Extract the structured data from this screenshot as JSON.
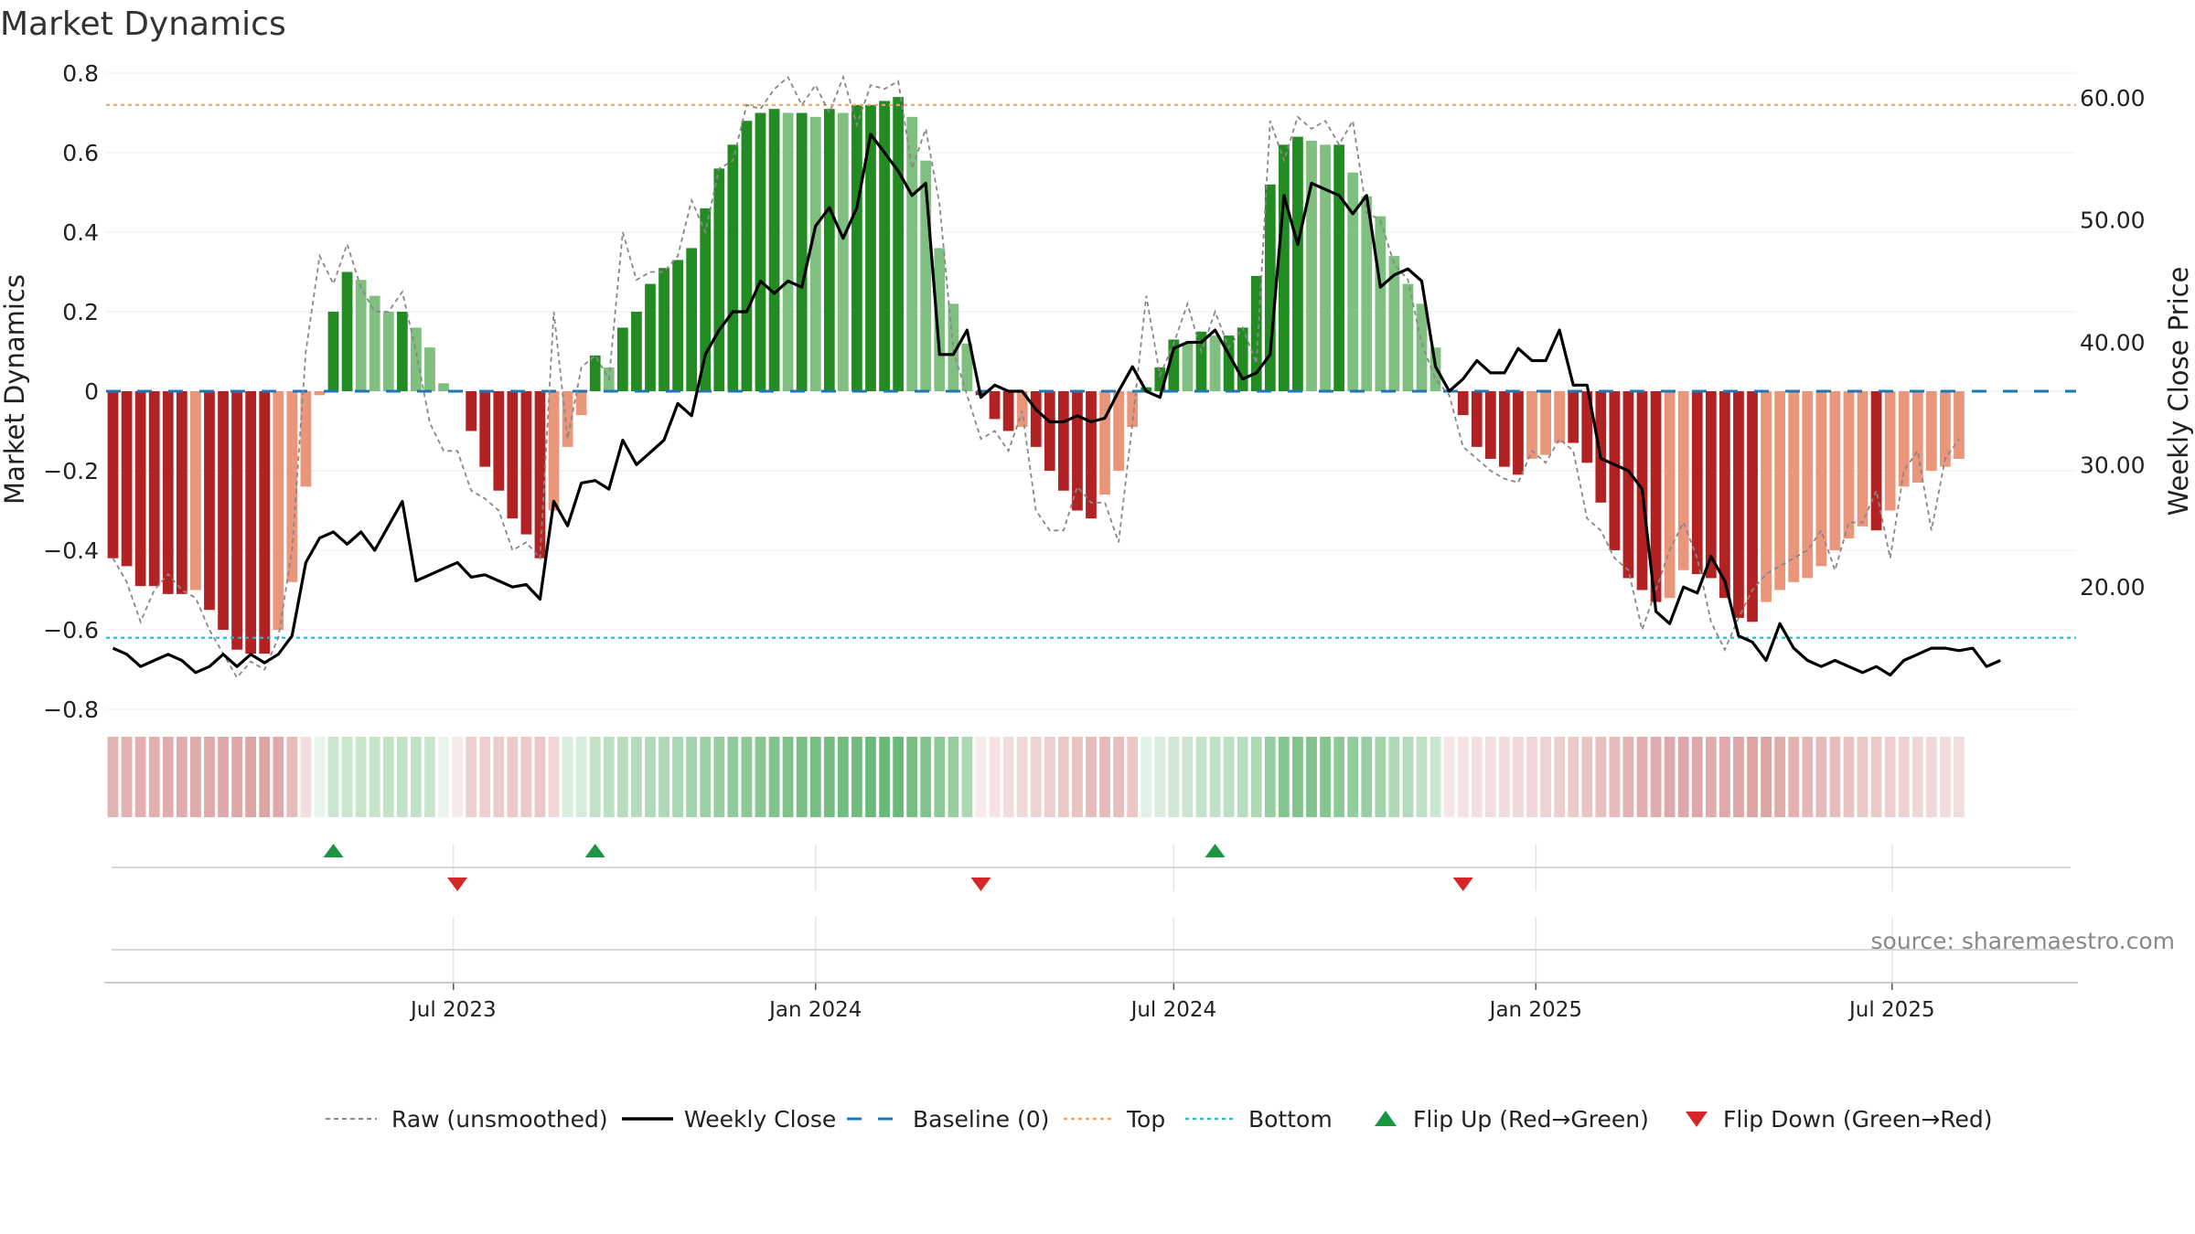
{
  "chart_data": {
    "type": "bar",
    "title": "Market Dynamics",
    "ylabel": "Market Dynamics",
    "ylabel_right": "Weekly Close Price",
    "source": "source: sharemaestro.com",
    "ylim": [
      -0.8,
      0.8
    ],
    "ylim_right": [
      10,
      62
    ],
    "yticks": [
      "0.8",
      "0.6",
      "0.4",
      "0.2",
      "0",
      "−0.2",
      "−0.4",
      "−0.6",
      "−0.8"
    ],
    "ytick_values": [
      0.8,
      0.6,
      0.4,
      0.2,
      0,
      -0.2,
      -0.4,
      -0.6,
      -0.8
    ],
    "yticks_right": [
      "60.00",
      "50.00",
      "40.00",
      "30.00",
      "20.00"
    ],
    "ytick_right_values": [
      60,
      50,
      40,
      30,
      20
    ],
    "x_start": "2023-01-09",
    "x_end": "2025-09-29",
    "xticks": [
      {
        "label": "Jul 2023",
        "date": "2023-07-01"
      },
      {
        "label": "Jan 2024",
        "date": "2024-01-01"
      },
      {
        "label": "Jul 2024",
        "date": "2024-07-01"
      },
      {
        "label": "Jan 2025",
        "date": "2025-01-01"
      },
      {
        "label": "Jul 2025",
        "date": "2025-07-01"
      }
    ],
    "top_level": 0.72,
    "bottom_level": -0.62,
    "grid": true,
    "legend_position": "bottom",
    "colors": {
      "up_strong": "#228B22",
      "up_weak": "#7fbf7f",
      "down_strong": "#b22222",
      "down_weak": "#e9967a",
      "raw": "#888888",
      "close": "#000000",
      "baseline": "#1f77b4",
      "top": "#f4a460",
      "bottom": "#17becf",
      "flip_up": "#1a9641",
      "flip_down": "#d62728"
    },
    "legend": [
      {
        "label": "Raw (unsmoothed)",
        "style": "dotted-gray"
      },
      {
        "label": "Weekly Close",
        "style": "solid-black"
      },
      {
        "label": "Baseline (0)",
        "style": "dashed-blue"
      },
      {
        "label": "Top",
        "style": "dotted-orange"
      },
      {
        "label": "Bottom",
        "style": "dotted-cyan"
      },
      {
        "label": "Flip Up (Red→Green)",
        "style": "triangle-up-green"
      },
      {
        "label": "Flip Down (Green→Red)",
        "style": "triangle-down-red"
      }
    ],
    "dynamics": [
      -0.42,
      -0.44,
      -0.49,
      -0.49,
      -0.51,
      -0.51,
      -0.5,
      -0.55,
      -0.6,
      -0.65,
      -0.66,
      -0.66,
      -0.6,
      -0.48,
      -0.24,
      -0.01,
      0.2,
      0.3,
      0.28,
      0.24,
      0.2,
      0.2,
      0.16,
      0.11,
      0.02,
      0,
      -0.1,
      -0.19,
      -0.25,
      -0.32,
      -0.36,
      -0.42,
      -0.3,
      -0.14,
      -0.06,
      0.09,
      0.06,
      0.16,
      0.2,
      0.27,
      0.31,
      0.33,
      0.36,
      0.46,
      0.56,
      0.62,
      0.68,
      0.7,
      0.71,
      0.7,
      0.7,
      0.69,
      0.71,
      0.7,
      0.72,
      0.72,
      0.73,
      0.74,
      0.69,
      0.58,
      0.36,
      0.22,
      0.12,
      -0.01,
      -0.07,
      -0.1,
      -0.09,
      -0.14,
      -0.2,
      -0.25,
      -0.3,
      -0.32,
      -0.26,
      -0.2,
      -0.09,
      0.01,
      0.06,
      0.13,
      0.12,
      0.15,
      0.14,
      0.14,
      0.16,
      0.29,
      0.52,
      0.62,
      0.64,
      0.63,
      0.62,
      0.62,
      0.55,
      0.49,
      0.44,
      0.34,
      0.27,
      0.22,
      0.11,
      0,
      -0.06,
      -0.14,
      -0.17,
      -0.19,
      -0.21,
      -0.17,
      -0.16,
      -0.13,
      -0.13,
      -0.18,
      -0.28,
      -0.4,
      -0.47,
      -0.5,
      -0.53,
      -0.52,
      -0.45,
      -0.46,
      -0.47,
      -0.52,
      -0.57,
      -0.58,
      -0.53,
      -0.5,
      -0.48,
      -0.47,
      -0.44,
      -0.4,
      -0.37,
      -0.34,
      -0.35,
      -0.3,
      -0.24,
      -0.23,
      -0.2,
      -0.19,
      -0.17
    ],
    "raw": [
      -0.42,
      -0.48,
      -0.58,
      -0.5,
      -0.46,
      -0.5,
      -0.52,
      -0.6,
      -0.66,
      -0.72,
      -0.68,
      -0.7,
      -0.62,
      -0.4,
      0.1,
      0.34,
      0.27,
      0.37,
      0.26,
      0.2,
      0.2,
      0.25,
      0.1,
      -0.08,
      -0.15,
      -0.15,
      -0.25,
      -0.27,
      -0.3,
      -0.4,
      -0.38,
      -0.42,
      0.2,
      -0.12,
      0.06,
      0.09,
      0.03,
      0.4,
      0.28,
      0.3,
      0.3,
      0.34,
      0.48,
      0.4,
      0.56,
      0.58,
      0.72,
      0.71,
      0.76,
      0.79,
      0.72,
      0.77,
      0.7,
      0.79,
      0.67,
      0.77,
      0.76,
      0.78,
      0.56,
      0.66,
      0.47,
      0.1,
      -0.01,
      -0.12,
      -0.1,
      -0.15,
      -0.05,
      -0.3,
      -0.35,
      -0.35,
      -0.24,
      -0.28,
      -0.28,
      -0.38,
      -0.08,
      0.24,
      0.04,
      0.12,
      0.22,
      0.1,
      0.2,
      0.11,
      0.16,
      0.07,
      0.68,
      0.58,
      0.69,
      0.66,
      0.68,
      0.62,
      0.68,
      0.45,
      0.43,
      0.32,
      0.28,
      0.12,
      0.03,
      -0.01,
      -0.14,
      -0.17,
      -0.2,
      -0.22,
      -0.23,
      -0.15,
      -0.18,
      -0.12,
      -0.15,
      -0.32,
      -0.35,
      -0.42,
      -0.45,
      -0.6,
      -0.5,
      -0.4,
      -0.33,
      -0.42,
      -0.58,
      -0.65,
      -0.57,
      -0.5,
      -0.46,
      -0.44,
      -0.42,
      -0.4,
      -0.35,
      -0.45,
      -0.33,
      -0.33,
      -0.25,
      -0.42,
      -0.2,
      -0.15,
      -0.35,
      -0.17,
      -0.12
    ],
    "close": [
      15.0,
      14.5,
      13.5,
      14.0,
      14.5,
      14.0,
      13.0,
      13.5,
      14.5,
      13.5,
      14.5,
      13.8,
      14.5,
      16.0,
      22.0,
      24.0,
      24.5,
      23.5,
      24.5,
      23.0,
      25.0,
      27.0,
      20.5,
      21.0,
      21.5,
      22.0,
      20.8,
      21.0,
      20.5,
      20.0,
      20.2,
      19.0,
      27.0,
      25.0,
      28.5,
      28.7,
      28.0,
      32.0,
      30.0,
      31.0,
      32.0,
      35.0,
      34.0,
      39.0,
      41.0,
      42.5,
      42.5,
      45.0,
      44.0,
      45.0,
      44.5,
      49.5,
      51.0,
      48.5,
      51.0,
      57.0,
      55.5,
      54.0,
      52.0,
      53.0,
      39.0,
      39.0,
      41.0,
      35.5,
      36.5,
      36.0,
      36.0,
      34.5,
      33.5,
      33.5,
      34.0,
      33.5,
      33.8,
      36.0,
      38.0,
      36.0,
      35.5,
      39.5,
      40.0,
      40.0,
      41.0,
      39.0,
      37.0,
      37.5,
      39.0,
      52.0,
      48.0,
      53.0,
      52.5,
      52.0,
      50.5,
      52.0,
      44.5,
      45.5,
      46.0,
      45.0,
      38.0,
      36.0,
      37.0,
      38.5,
      37.5,
      37.5,
      39.5,
      38.5,
      38.5,
      41.0,
      36.5,
      36.5,
      30.5,
      30.0,
      29.5,
      28.0,
      18.0,
      17.0,
      20.0,
      19.5,
      22.5,
      20.5,
      16.0,
      15.5,
      14.0,
      17.0,
      15.0,
      14.0,
      13.5,
      14.0,
      13.5,
      13.0,
      13.5,
      12.8,
      14.0,
      14.5,
      15.0,
      15.0,
      14.8,
      15.0,
      13.5,
      14.0
    ],
    "flip_up_weeks": [
      16,
      35,
      80
    ],
    "flip_down_weeks": [
      25,
      63,
      98
    ],
    "band": [
      -0.55,
      -0.56,
      -0.57,
      -0.58,
      -0.59,
      -0.6,
      -0.61,
      -0.62,
      -0.63,
      -0.64,
      -0.65,
      -0.66,
      -0.62,
      -0.48,
      -0.24,
      0.01,
      0.28,
      0.29,
      0.3,
      0.31,
      0.32,
      0.33,
      0.34,
      0.28,
      0.1,
      -0.15,
      -0.35,
      -0.36,
      -0.37,
      -0.38,
      -0.39,
      -0.4,
      -0.3,
      0.21,
      0.22,
      0.33,
      0.36,
      0.38,
      0.4,
      0.42,
      0.43,
      0.46,
      0.5,
      0.53,
      0.56,
      0.6,
      0.62,
      0.64,
      0.68,
      0.7,
      0.72,
      0.74,
      0.75,
      0.76,
      0.77,
      0.78,
      0.8,
      0.8,
      0.74,
      0.68,
      0.62,
      0.56,
      0.45,
      -0.14,
      -0.2,
      -0.25,
      -0.28,
      -0.32,
      -0.35,
      -0.4,
      -0.44,
      -0.48,
      -0.5,
      -0.46,
      -0.4,
      0.15,
      0.2,
      0.26,
      0.28,
      0.32,
      0.34,
      0.36,
      0.38,
      0.44,
      0.56,
      0.66,
      0.68,
      0.68,
      0.66,
      0.62,
      0.58,
      0.55,
      0.5,
      0.44,
      0.4,
      0.34,
      0.28,
      -0.18,
      -0.2,
      -0.22,
      -0.24,
      -0.26,
      -0.28,
      -0.3,
      -0.32,
      -0.35,
      -0.38,
      -0.42,
      -0.46,
      -0.5,
      -0.55,
      -0.58,
      -0.6,
      -0.62,
      -0.63,
      -0.62,
      -0.6,
      -0.62,
      -0.64,
      -0.66,
      -0.65,
      -0.6,
      -0.56,
      -0.52,
      -0.5,
      -0.48,
      -0.44,
      -0.4,
      -0.38,
      -0.36,
      -0.33,
      -0.3,
      -0.28,
      -0.26,
      -0.24
    ]
  }
}
